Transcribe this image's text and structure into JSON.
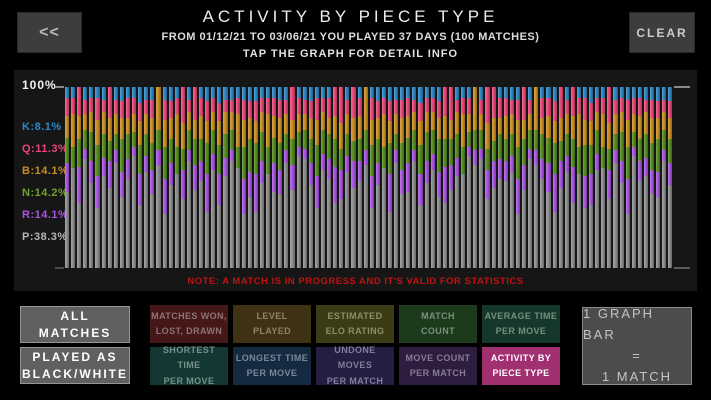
{
  "header": {
    "back_label": "<<",
    "title": "ACTIVITY BY PIECE TYPE",
    "subtitle": "FROM 01/12/21 TO 03/06/21 YOU PLAYED 37 DAYS (100 MATCHES)",
    "hint": "TAP THE GRAPH FOR DETAIL INFO",
    "clear_label": "CLEAR"
  },
  "chart_data": {
    "type": "bar",
    "stacked": true,
    "unit": "percent-of-moves-per-match",
    "bar_meaning": "1 graph bar = 1 match",
    "bar_count": 100,
    "ylim": [
      0,
      100
    ],
    "ymax_label": "100%",
    "grid": false,
    "legend_position": "left",
    "note": "NOTE: A MATCH IS IN PROGRESS AND IT'S VALID FOR STATISTICS",
    "note_color": "#c01212",
    "series_order_bottom_to_top": [
      "P",
      "R",
      "N",
      "B",
      "Q",
      "K"
    ],
    "legend": [
      {
        "key": "K",
        "label": "K:8.1%",
        "avg_percent": 8.1,
        "color": "#2d86c4",
        "text_color": "#2d86c4"
      },
      {
        "key": "Q",
        "label": "Q:11.3%",
        "avg_percent": 11.3,
        "color": "#ea4679",
        "text_color": "#ea4679"
      },
      {
        "key": "B",
        "label": "B:14.1%",
        "avg_percent": 14.1,
        "color": "#c98e1e",
        "text_color": "#c98e1e"
      },
      {
        "key": "N",
        "label": "N:14.2%",
        "avg_percent": 14.2,
        "color": "#558c1e",
        "text_color": "#6fa32a"
      },
      {
        "key": "R",
        "label": "R:14.1%",
        "avg_percent": 14.1,
        "color": "#a855e0",
        "text_color": "#a855e0"
      },
      {
        "key": "P",
        "label": "P:38.3%",
        "avg_percent": 38.3,
        "color": "#8d8d8d",
        "text_color": "#b5b5b5"
      }
    ],
    "bars_segment_order": [
      "P",
      "R",
      "N",
      "B",
      "Q",
      "K"
    ],
    "bars": [
      [
        42,
        16,
        14,
        12,
        10,
        6
      ],
      [
        55,
        0,
        12,
        18,
        9,
        6
      ],
      [
        36,
        20,
        15,
        13,
        16,
        0
      ],
      [
        60,
        6,
        10,
        9,
        8,
        7
      ],
      [
        47,
        12,
        16,
        11,
        8,
        6
      ],
      [
        33,
        18,
        17,
        14,
        12,
        6
      ],
      [
        51,
        10,
        13,
        12,
        7,
        7
      ],
      [
        44,
        15,
        11,
        13,
        17,
        0
      ],
      [
        58,
        7,
        9,
        11,
        8,
        7
      ],
      [
        39,
        14,
        18,
        12,
        9,
        8
      ],
      [
        49,
        11,
        14,
        9,
        11,
        6
      ],
      [
        62,
        5,
        8,
        10,
        9,
        6
      ],
      [
        35,
        17,
        16,
        13,
        10,
        9
      ],
      [
        53,
        9,
        12,
        11,
        8,
        7
      ],
      [
        41,
        13,
        15,
        14,
        10,
        7
      ],
      [
        57,
        8,
        11,
        24,
        0,
        0
      ],
      [
        30,
        19,
        18,
        15,
        11,
        7
      ],
      [
        46,
        12,
        13,
        12,
        9,
        8
      ],
      [
        52,
        0,
        15,
        18,
        9,
        6
      ],
      [
        38,
        16,
        12,
        14,
        20,
        0
      ],
      [
        59,
        6,
        11,
        10,
        7,
        7
      ],
      [
        43,
        14,
        14,
        11,
        18,
        0
      ],
      [
        48,
        11,
        12,
        13,
        10,
        6
      ],
      [
        31,
        21,
        17,
        12,
        11,
        8
      ],
      [
        54,
        9,
        13,
        10,
        8,
        6
      ],
      [
        35,
        17,
        16,
        13,
        10,
        9
      ],
      [
        51,
        10,
        13,
        12,
        7,
        7
      ],
      [
        59,
        6,
        11,
        10,
        7,
        7
      ],
      [
        55,
        0,
        12,
        18,
        9,
        6
      ],
      [
        30,
        19,
        18,
        15,
        11,
        7
      ],
      [
        39,
        14,
        18,
        12,
        9,
        8
      ],
      [
        31,
        21,
        17,
        12,
        11,
        8
      ],
      [
        47,
        12,
        16,
        11,
        8,
        6
      ],
      [
        52,
        0,
        15,
        18,
        9,
        6
      ],
      [
        42,
        16,
        14,
        12,
        10,
        6
      ],
      [
        41,
        13,
        15,
        14,
        10,
        7
      ],
      [
        58,
        7,
        9,
        11,
        8,
        7
      ],
      [
        43,
        14,
        14,
        11,
        18,
        0
      ],
      [
        62,
        5,
        8,
        10,
        9,
        6
      ],
      [
        60,
        6,
        10,
        9,
        8,
        7
      ],
      [
        46,
        12,
        13,
        12,
        9,
        8
      ],
      [
        33,
        18,
        17,
        14,
        12,
        6
      ],
      [
        54,
        9,
        13,
        10,
        8,
        6
      ],
      [
        49,
        11,
        14,
        9,
        11,
        6
      ],
      [
        36,
        20,
        15,
        13,
        16,
        0
      ],
      [
        38,
        16,
        12,
        14,
        20,
        0
      ],
      [
        53,
        9,
        12,
        11,
        8,
        7
      ],
      [
        44,
        15,
        11,
        13,
        17,
        0
      ],
      [
        48,
        11,
        12,
        13,
        10,
        6
      ],
      [
        57,
        8,
        11,
        24,
        0,
        0
      ],
      [
        33,
        18,
        17,
        14,
        12,
        6
      ],
      [
        46,
        12,
        13,
        12,
        9,
        8
      ],
      [
        55,
        0,
        12,
        18,
        9,
        6
      ],
      [
        31,
        21,
        17,
        12,
        11,
        8
      ],
      [
        58,
        7,
        9,
        11,
        8,
        7
      ],
      [
        41,
        13,
        15,
        14,
        10,
        7
      ],
      [
        42,
        16,
        14,
        12,
        10,
        6
      ],
      [
        59,
        6,
        11,
        10,
        7,
        7
      ],
      [
        35,
        17,
        16,
        13,
        10,
        9
      ],
      [
        47,
        12,
        16,
        11,
        8,
        6
      ],
      [
        54,
        9,
        13,
        10,
        8,
        6
      ],
      [
        39,
        14,
        18,
        12,
        9,
        8
      ],
      [
        36,
        20,
        15,
        13,
        16,
        0
      ],
      [
        43,
        14,
        14,
        11,
        18,
        0
      ],
      [
        51,
        10,
        13,
        12,
        7,
        7
      ],
      [
        52,
        0,
        15,
        18,
        9,
        6
      ],
      [
        62,
        5,
        8,
        10,
        9,
        6
      ],
      [
        57,
        8,
        11,
        24,
        0,
        0
      ],
      [
        60,
        6,
        10,
        9,
        8,
        7
      ],
      [
        38,
        16,
        12,
        14,
        20,
        0
      ],
      [
        44,
        15,
        11,
        13,
        17,
        0
      ],
      [
        49,
        11,
        14,
        9,
        11,
        6
      ],
      [
        48,
        11,
        12,
        13,
        10,
        6
      ],
      [
        53,
        9,
        12,
        11,
        8,
        7
      ],
      [
        30,
        19,
        18,
        15,
        11,
        7
      ],
      [
        43,
        14,
        14,
        11,
        18,
        0
      ],
      [
        60,
        6,
        10,
        9,
        8,
        7
      ],
      [
        57,
        8,
        11,
        24,
        0,
        0
      ],
      [
        49,
        11,
        14,
        9,
        11,
        6
      ],
      [
        42,
        16,
        14,
        12,
        10,
        6
      ],
      [
        31,
        21,
        17,
        12,
        11,
        8
      ],
      [
        44,
        15,
        11,
        13,
        17,
        0
      ],
      [
        53,
        9,
        12,
        11,
        8,
        7
      ],
      [
        36,
        20,
        15,
        13,
        16,
        0
      ],
      [
        52,
        0,
        15,
        18,
        9,
        6
      ],
      [
        33,
        18,
        17,
        14,
        12,
        6
      ],
      [
        35,
        17,
        16,
        13,
        10,
        9
      ],
      [
        54,
        9,
        13,
        10,
        8,
        6
      ],
      [
        55,
        0,
        12,
        18,
        9,
        6
      ],
      [
        38,
        16,
        12,
        14,
        20,
        0
      ],
      [
        58,
        7,
        9,
        11,
        8,
        7
      ],
      [
        47,
        12,
        16,
        11,
        8,
        6
      ],
      [
        30,
        19,
        18,
        15,
        11,
        7
      ],
      [
        62,
        5,
        8,
        10,
        9,
        6
      ],
      [
        48,
        11,
        12,
        13,
        10,
        6
      ],
      [
        51,
        10,
        13,
        12,
        7,
        7
      ],
      [
        41,
        13,
        15,
        14,
        10,
        7
      ],
      [
        39,
        14,
        18,
        12,
        9,
        8
      ],
      [
        59,
        6,
        11,
        10,
        7,
        7
      ],
      [
        46,
        12,
        13,
        12,
        9,
        8
      ]
    ]
  },
  "controls": {
    "left_buttons": [
      {
        "key": "all-matches",
        "label": "ALL\nMATCHES"
      },
      {
        "key": "played-as-black-white",
        "label": "PLAYED AS\nBLACK/WHITE"
      }
    ],
    "stat_buttons": [
      {
        "key": "matches-won-lost-drawn",
        "label": "MATCHES WON,\nLOST, DRAWN",
        "bg": "#451717",
        "fg": "#8d7575",
        "selected": false
      },
      {
        "key": "level-played",
        "label": "LEVEL\nPLAYED",
        "bg": "#3f3212",
        "fg": "#8f8468",
        "selected": false
      },
      {
        "key": "estimated-elo-rating",
        "label": "ESTIMATED\nELO RATING",
        "bg": "#3b3b15",
        "fg": "#8e8d6c",
        "selected": false
      },
      {
        "key": "match-count",
        "label": "MATCH\nCOUNT",
        "bg": "#1d3a1d",
        "fg": "#78907a",
        "selected": false
      },
      {
        "key": "average-time-per-move",
        "label": "AVERAGE TIME\nPER MOVE",
        "bg": "#16382a",
        "fg": "#748e82",
        "selected": false
      },
      {
        "key": "shortest-time-per-move",
        "label": "SHORTEST TIME\nPER MOVE",
        "bg": "#133833",
        "fg": "#768f8a",
        "selected": false
      },
      {
        "key": "longest-time-per-move",
        "label": "LONGEST TIME\nPER MOVE",
        "bg": "#152a40",
        "fg": "#7a8797",
        "selected": false
      },
      {
        "key": "undone-moves-per-match",
        "label": "UNDONE MOVES\nPER MATCH",
        "bg": "#251d42",
        "fg": "#827d99",
        "selected": false
      },
      {
        "key": "move-count-per-match",
        "label": "MOVE COUNT\nPER MATCH",
        "bg": "#2e1d3e",
        "fg": "#887c94",
        "selected": false
      },
      {
        "key": "activity-by-piece-type",
        "label": "ACTIVITY BY\nPIECE TYPE",
        "bg": "#a13070",
        "fg": "#ffffff",
        "selected": true
      }
    ],
    "info_box": {
      "lines": [
        "1 GRAPH BAR",
        "=",
        "1 MATCH"
      ]
    }
  }
}
